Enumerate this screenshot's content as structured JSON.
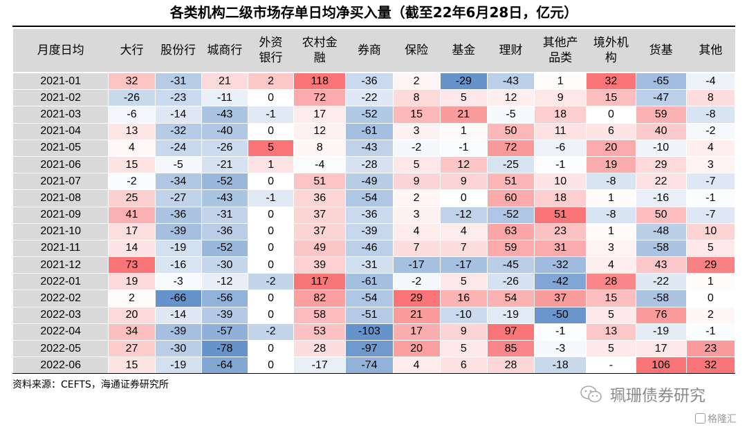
{
  "title": "各类机构二级市场存单日均净买入量（截至22年6月28日，亿元）",
  "headers": [
    "月度日均",
    "大行",
    "股份行",
    "城商行",
    "外资\n银行",
    "农村金\n融",
    "券商",
    "保险",
    "基金",
    "理财",
    "其他产\n品类",
    "境外机\n构",
    "货基",
    "其他"
  ],
  "rows": [
    [
      "2021-01",
      "32",
      "-31",
      "21",
      "2",
      "118",
      "-36",
      "2",
      "-29",
      "-43",
      "1",
      "32",
      "-65",
      "-4"
    ],
    [
      "2021-02",
      "-26",
      "-23",
      "-11",
      "0",
      "72",
      "-22",
      "8",
      "5",
      "12",
      "9",
      "15",
      "-47",
      "8"
    ],
    [
      "2021-03",
      "-6",
      "-14",
      "-43",
      "-1",
      "17",
      "-52",
      "15",
      "21",
      "-5",
      "18",
      "0",
      "59",
      "-8"
    ],
    [
      "2021-04",
      "13",
      "-32",
      "-40",
      "0",
      "12",
      "-61",
      "3",
      "1",
      "50",
      "11",
      "6",
      "40",
      "-2"
    ],
    [
      "2021-05",
      "4",
      "-24",
      "-26",
      "5",
      "8",
      "-43",
      "-2",
      "-1",
      "72",
      "-6",
      "20",
      "-10",
      "4"
    ],
    [
      "2021-06",
      "15",
      "-5",
      "-21",
      "1",
      "-4",
      "-28",
      "5",
      "12",
      "-25",
      "-1",
      "19",
      "29",
      "3"
    ],
    [
      "2021-07",
      "-2",
      "-34",
      "-52",
      "0",
      "51",
      "-49",
      "9",
      "9",
      "51",
      "10",
      "-8",
      "22",
      "-7"
    ],
    [
      "2021-08",
      "25",
      "-27",
      "-43",
      "-1",
      "36",
      "-54",
      "2",
      "0",
      "60",
      "18",
      "1",
      "-16",
      "-1"
    ],
    [
      "2021-09",
      "41",
      "-36",
      "-31",
      "0",
      "37",
      "-36",
      "3",
      "-12",
      "-52",
      "51",
      "-8",
      "50",
      "-7"
    ],
    [
      "2021-10",
      "17",
      "-39",
      "-36",
      "0",
      "37",
      "-39",
      "4",
      "4",
      "63",
      "23",
      "1",
      "-48",
      "10"
    ],
    [
      "2021-11",
      "14",
      "-19",
      "-52",
      "0",
      "49",
      "-46",
      "7",
      "7",
      "59",
      "31",
      "3",
      "-58",
      "5"
    ],
    [
      "2021-12",
      "73",
      "-16",
      "-30",
      "0",
      "39",
      "-31",
      "-17",
      "-17",
      "-45",
      "-32",
      "4",
      "43",
      "29"
    ],
    [
      "2022-01",
      "19",
      "-3",
      "-12",
      "-2",
      "117",
      "-61",
      "-2",
      "5",
      "-26",
      "-42",
      "28",
      "-22",
      "1"
    ],
    [
      "2022-02",
      "2",
      "-66",
      "-56",
      "0",
      "82",
      "-54",
      "29",
      "16",
      "54",
      "37",
      "15",
      "-58",
      "0"
    ],
    [
      "2022-03",
      "20",
      "-14",
      "-39",
      "0",
      "58",
      "-51",
      "21",
      "-10",
      "-19",
      "-50",
      "5",
      "76",
      "2"
    ],
    [
      "2022-04",
      "34",
      "-39",
      "-57",
      "-2",
      "53",
      "-103",
      "17",
      "9",
      "97",
      "-1",
      "13",
      "-19",
      "-1"
    ],
    [
      "2022-05",
      "27",
      "-30",
      "-78",
      "0",
      "28",
      "-97",
      "20",
      "5",
      "85",
      "-3",
      "5",
      "17",
      "23"
    ],
    [
      "2022-06",
      "15",
      "-19",
      "-64",
      "0",
      "-17",
      "-74",
      "4",
      "6",
      "28",
      "-18",
      "-",
      "106",
      "32"
    ]
  ],
  "source": "资料来源：CEFTS，海通证券研究所",
  "watermark": "珮珊债券研究",
  "corner_mark": "格隆汇",
  "colors": {
    "positive": "#f8696b",
    "negative": "#5a8ac6",
    "header_bg": "#d9d9d9"
  }
}
